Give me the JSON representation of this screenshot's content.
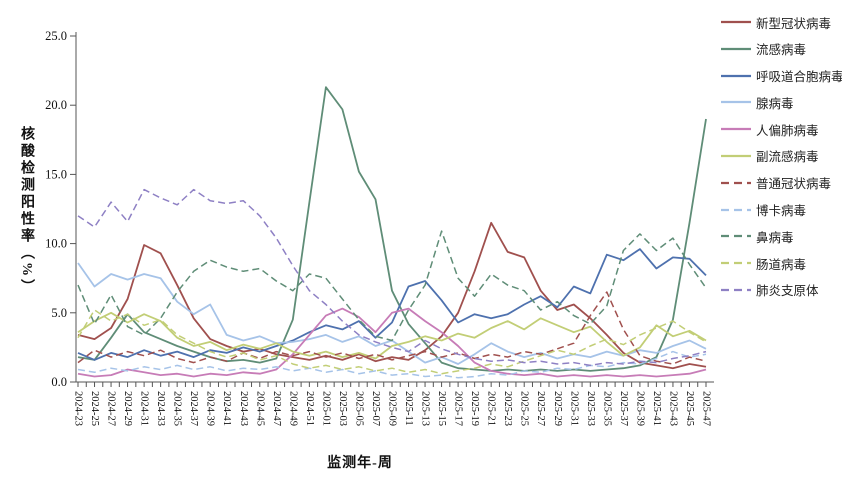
{
  "page": {
    "background": "#ffffff"
  },
  "chart_data": {
    "type": "line",
    "title": "",
    "xlabel": "监测年-周",
    "ylabel": "核酸检测阳性率（%）",
    "ylim": [
      0,
      25
    ],
    "ytick_labels": [
      "0.0",
      "5.0",
      "10.0",
      "15.0",
      "20.0",
      "25.0"
    ],
    "grid": false,
    "legend_position": "right",
    "x_labels": [
      "2024-23",
      "2024-25",
      "2024-27",
      "2024-29",
      "2024-31",
      "2024-33",
      "2024-35",
      "2024-37",
      "2024-39",
      "2024-41",
      "2024-43",
      "2024-45",
      "2024-47",
      "2024-49",
      "2024-51",
      "2025-01",
      "2025-03",
      "2025-05",
      "2025-07",
      "2025-09",
      "2025-11",
      "2025-13",
      "2025-15",
      "2025-17",
      "2025-19",
      "2025-21",
      "2025-23",
      "2025-25",
      "2025-27",
      "2025-29",
      "2025-31",
      "2025-33",
      "2025-35",
      "2025-37",
      "2025-39",
      "2025-41",
      "2025-43",
      "2025-45",
      "2025-47"
    ],
    "series": [
      {
        "name": "新型冠状病毒",
        "color": "#A0504E",
        "style": "solid",
        "values": [
          3.4,
          3.1,
          3.9,
          6.0,
          9.9,
          9.3,
          7.0,
          4.6,
          3.1,
          2.6,
          2.2,
          2.4,
          2.0,
          1.8,
          1.6,
          1.9,
          1.6,
          2.0,
          1.5,
          1.8,
          1.6,
          2.3,
          3.3,
          5.0,
          8.0,
          11.5,
          9.4,
          9.0,
          6.6,
          5.2,
          5.6,
          4.6,
          3.4,
          2.1,
          1.4,
          1.2,
          1.0,
          1.3,
          1.1
        ]
      },
      {
        "name": "流感病毒",
        "color": "#5F8D77",
        "style": "solid",
        "values": [
          1.8,
          1.6,
          3.2,
          4.9,
          3.6,
          3.1,
          2.6,
          2.2,
          1.8,
          1.5,
          1.6,
          1.4,
          1.7,
          4.5,
          13.0,
          21.3,
          19.7,
          15.2,
          13.2,
          6.6,
          4.2,
          2.8,
          1.4,
          1.0,
          0.9,
          0.8,
          0.9,
          0.8,
          0.9,
          0.8,
          0.9,
          0.8,
          0.9,
          1.0,
          1.2,
          1.8,
          4.5,
          11.5,
          19.0
        ]
      },
      {
        "name": "呼吸道合胞病毒",
        "color": "#4E71AE",
        "style": "solid",
        "values": [
          2.1,
          1.6,
          2.1,
          1.8,
          2.3,
          1.9,
          2.2,
          1.8,
          2.3,
          2.1,
          2.5,
          2.2,
          2.6,
          3.0,
          3.6,
          4.1,
          3.8,
          4.4,
          3.2,
          4.3,
          6.9,
          7.3,
          5.9,
          4.3,
          4.9,
          4.6,
          4.9,
          5.6,
          6.2,
          5.4,
          6.9,
          6.4,
          9.2,
          8.8,
          9.6,
          8.2,
          9.0,
          8.9,
          7.7
        ]
      },
      {
        "name": "腺病毒",
        "color": "#A6C3E8",
        "style": "solid",
        "values": [
          8.6,
          6.9,
          7.8,
          7.4,
          7.8,
          7.5,
          5.8,
          4.9,
          5.6,
          3.4,
          3.0,
          3.3,
          2.8,
          2.9,
          3.1,
          3.4,
          2.9,
          3.3,
          2.6,
          3.0,
          2.2,
          1.4,
          1.8,
          1.3,
          2.0,
          2.8,
          2.2,
          1.8,
          2.1,
          1.7,
          2.0,
          1.8,
          2.2,
          1.9,
          2.3,
          2.1,
          2.6,
          3.0,
          2.4
        ]
      },
      {
        "name": "人偏肺病毒",
        "color": "#C77CB7",
        "style": "solid",
        "values": [
          0.6,
          0.4,
          0.5,
          0.9,
          0.7,
          0.5,
          0.6,
          0.4,
          0.6,
          0.5,
          0.7,
          0.6,
          0.9,
          2.0,
          3.4,
          4.8,
          5.3,
          4.7,
          3.6,
          5.0,
          5.3,
          4.4,
          3.6,
          2.6,
          1.4,
          0.8,
          0.6,
          0.5,
          0.6,
          0.4,
          0.5,
          0.4,
          0.5,
          0.4,
          0.5,
          0.4,
          0.5,
          0.6,
          0.9
        ]
      },
      {
        "name": "副流感病毒",
        "color": "#C2CE76",
        "style": "solid",
        "values": [
          3.6,
          4.4,
          5.0,
          4.3,
          4.9,
          4.4,
          3.2,
          2.6,
          2.9,
          2.3,
          2.7,
          2.4,
          2.8,
          2.2,
          1.9,
          2.2,
          1.8,
          2.1,
          1.7,
          2.6,
          2.9,
          3.3,
          3.0,
          3.5,
          3.2,
          3.9,
          4.4,
          3.8,
          4.6,
          4.1,
          3.6,
          4.0,
          2.9,
          1.9,
          2.5,
          4.1,
          3.3,
          3.7,
          3.0
        ]
      },
      {
        "name": "普通冠状病毒",
        "color": "#A0504E",
        "style": "dashed",
        "values": [
          1.4,
          2.3,
          1.8,
          2.2,
          1.9,
          2.3,
          1.7,
          1.4,
          1.8,
          1.5,
          2.1,
          1.7,
          2.2,
          1.9,
          2.2,
          1.8,
          2.1,
          1.7,
          2.0,
          1.6,
          1.9,
          2.2,
          1.8,
          2.1,
          1.7,
          2.0,
          1.8,
          2.2,
          2.0,
          2.4,
          2.8,
          4.8,
          6.5,
          3.8,
          1.9,
          1.5,
          1.3,
          1.8,
          1.5
        ]
      },
      {
        "name": "博卡病毒",
        "color": "#A6C3E8",
        "style": "dashed",
        "values": [
          0.9,
          0.7,
          1.0,
          0.8,
          1.1,
          0.9,
          1.2,
          0.9,
          1.1,
          0.8,
          1.0,
          0.9,
          1.1,
          0.8,
          1.0,
          0.7,
          0.9,
          0.6,
          0.8,
          0.5,
          0.6,
          0.4,
          0.5,
          0.3,
          0.4,
          0.6,
          0.5,
          0.8,
          0.7,
          1.0,
          0.9,
          1.2,
          1.1,
          1.4,
          1.3,
          1.7,
          2.2,
          1.8,
          2.0
        ]
      },
      {
        "name": "鼻病毒",
        "color": "#5F8D77",
        "style": "dashed",
        "values": [
          7.0,
          4.2,
          6.3,
          4.0,
          3.4,
          4.6,
          6.5,
          8.0,
          8.8,
          8.3,
          8.0,
          8.2,
          7.3,
          6.6,
          7.8,
          7.5,
          6.0,
          4.5,
          3.3,
          3.0,
          5.2,
          7.0,
          10.9,
          7.5,
          6.2,
          7.8,
          7.0,
          6.6,
          5.2,
          5.8,
          4.8,
          4.2,
          5.5,
          9.5,
          10.7,
          9.5,
          10.4,
          8.5,
          6.8
        ]
      },
      {
        "name": "肠道病毒",
        "color": "#C2CE76",
        "style": "dashed",
        "values": [
          3.2,
          5.2,
          4.4,
          4.9,
          4.1,
          4.5,
          3.4,
          2.8,
          2.2,
          1.8,
          2.1,
          1.6,
          1.9,
          1.3,
          1.0,
          1.2,
          0.9,
          1.1,
          0.8,
          1.0,
          0.7,
          0.9,
          0.6,
          0.8,
          1.0,
          1.3,
          1.1,
          1.5,
          1.9,
          2.3,
          2.0,
          2.6,
          3.1,
          2.7,
          3.4,
          3.9,
          4.4,
          3.6,
          2.9
        ]
      },
      {
        "name": "肺炎支原体",
        "color": "#8E80C4",
        "style": "dashed",
        "values": [
          12.0,
          11.2,
          13.0,
          11.6,
          13.9,
          13.3,
          12.8,
          13.9,
          13.1,
          12.9,
          13.1,
          12.0,
          10.4,
          8.4,
          6.6,
          5.6,
          4.4,
          3.4,
          2.9,
          2.5,
          2.2,
          3.0,
          2.4,
          2.0,
          1.7,
          1.5,
          1.6,
          1.4,
          1.5,
          1.3,
          1.4,
          1.2,
          1.4,
          1.3,
          1.5,
          1.4,
          1.7,
          1.9,
          2.2
        ]
      }
    ]
  }
}
